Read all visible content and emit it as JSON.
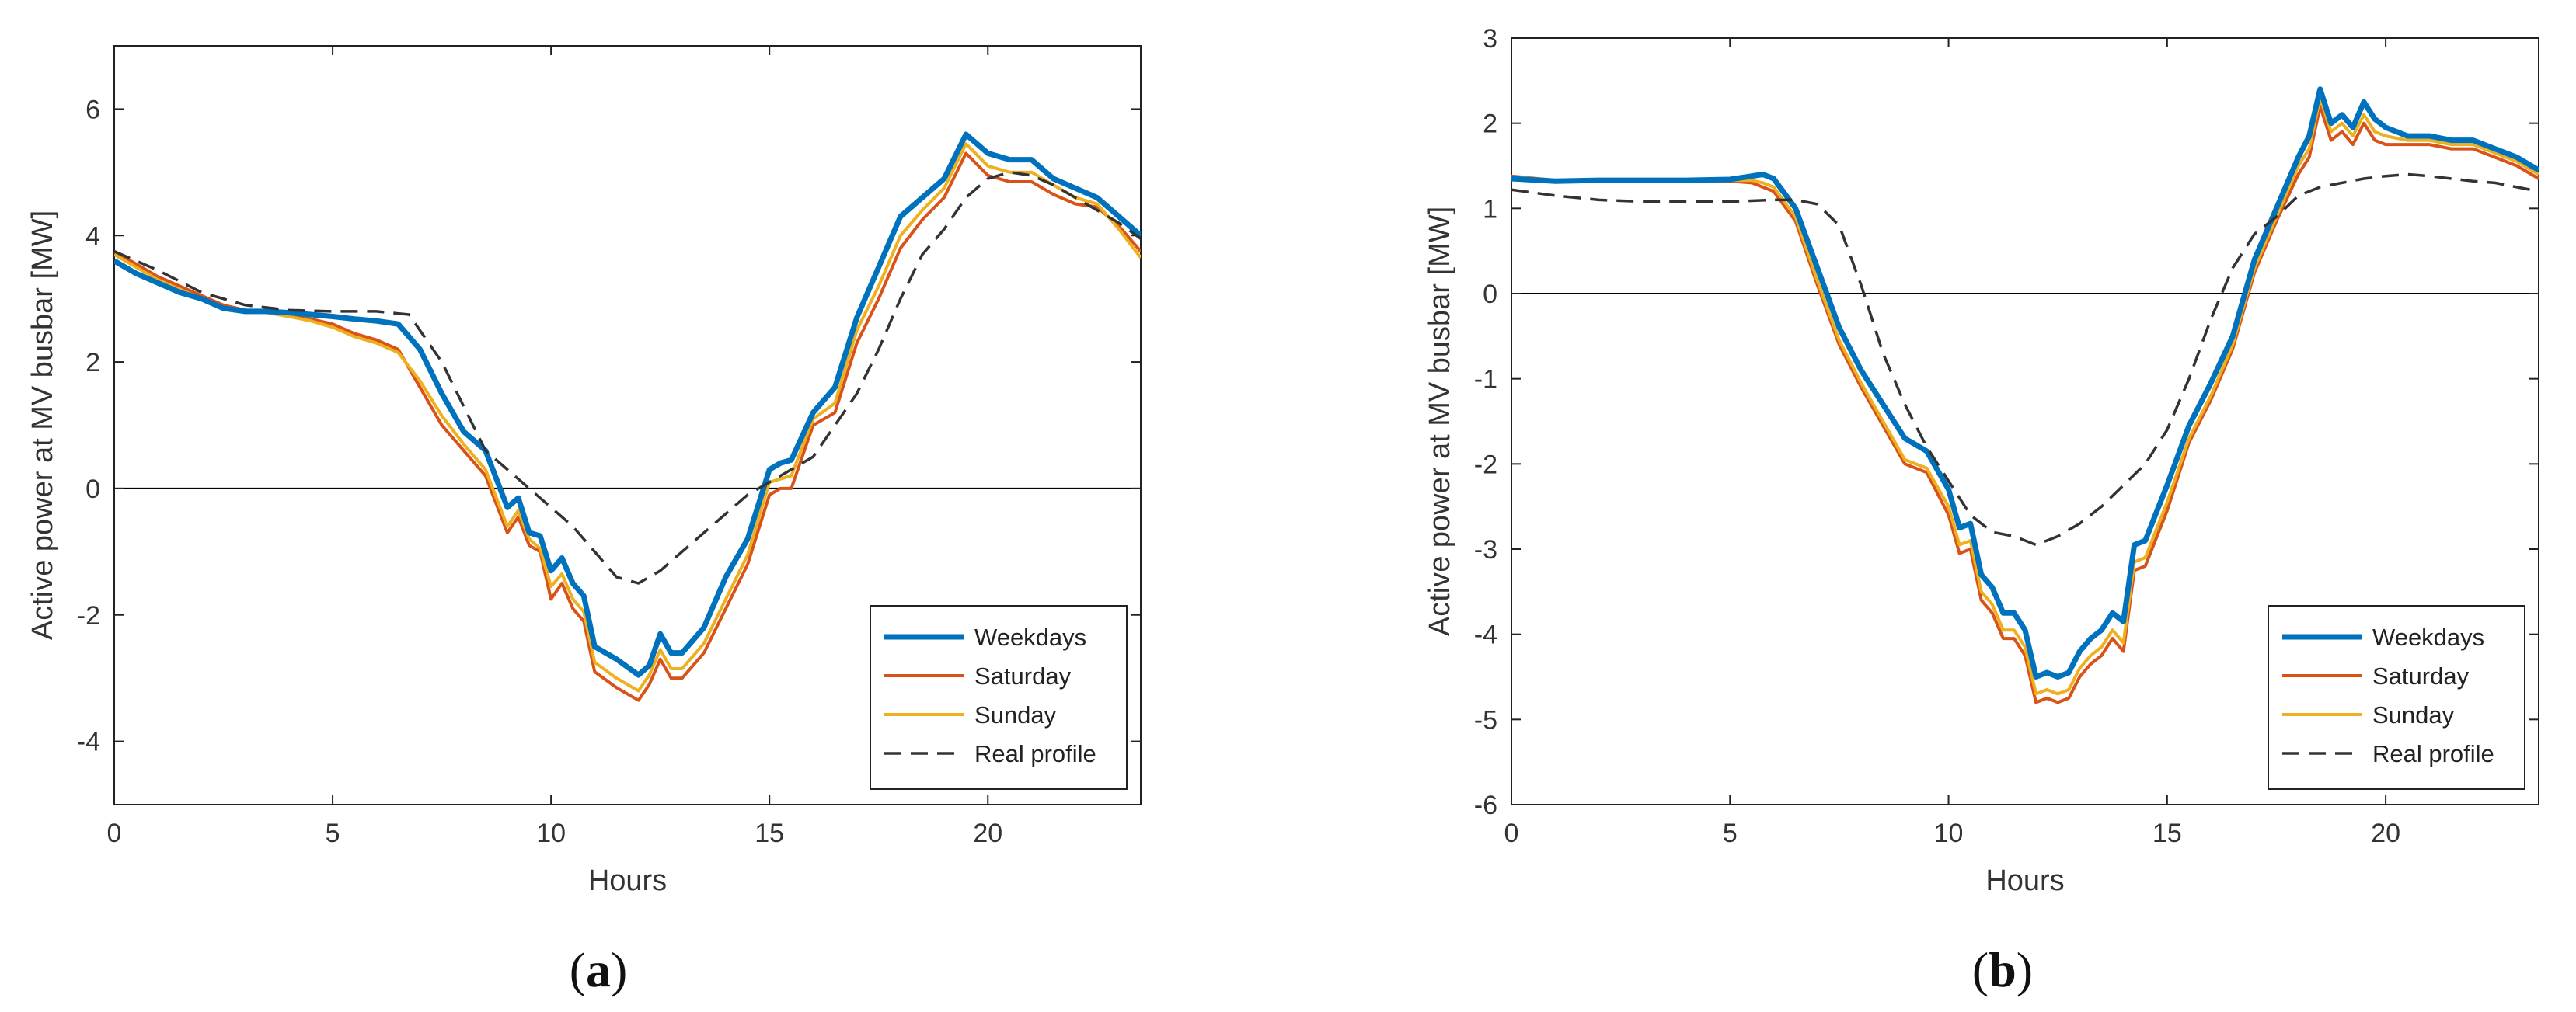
{
  "colors": {
    "weekdays": "#0072BD",
    "saturday": "#D95319",
    "sunday": "#EDB120",
    "real": "#333333",
    "axis": "#000000",
    "tick": "#444444"
  },
  "chart_data": [
    {
      "type": "line",
      "panel_label": "a",
      "xlabel": "Hours",
      "ylabel": "Active power at MV busbar [MW]",
      "xlim": [
        0,
        23.5
      ],
      "ylim": [
        -5,
        7
      ],
      "xticks": [
        0,
        5,
        10,
        15,
        20
      ],
      "yticks": [
        -4,
        -2,
        0,
        2,
        4,
        6
      ],
      "zero_line": true,
      "legend_position": "lower-right",
      "series": [
        {
          "name": "Weekdays",
          "style": "solid-thick",
          "color": "#0072BD",
          "x": [
            0,
            0.5,
            1,
            1.5,
            2,
            2.5,
            3,
            3.5,
            4,
            4.5,
            5,
            5.5,
            6,
            6.5,
            7,
            7.5,
            8,
            8.5,
            9,
            9.25,
            9.5,
            9.75,
            10,
            10.25,
            10.5,
            10.75,
            11,
            11.5,
            12,
            12.25,
            12.5,
            12.75,
            13,
            13.5,
            14,
            14.5,
            15,
            15.25,
            15.5,
            16,
            16.5,
            17,
            17.5,
            18,
            18.5,
            19,
            19.5,
            20,
            20.5,
            21,
            21.5,
            22,
            22.5,
            23,
            23.5
          ],
          "values": [
            3.6,
            3.4,
            3.25,
            3.1,
            3.0,
            2.85,
            2.8,
            2.8,
            2.78,
            2.75,
            2.72,
            2.68,
            2.65,
            2.6,
            2.2,
            1.5,
            0.9,
            0.6,
            -0.3,
            -0.15,
            -0.7,
            -0.75,
            -1.3,
            -1.1,
            -1.5,
            -1.7,
            -2.5,
            -2.7,
            -2.95,
            -2.8,
            -2.3,
            -2.6,
            -2.6,
            -2.2,
            -1.4,
            -0.8,
            0.3,
            0.4,
            0.45,
            1.2,
            1.6,
            2.7,
            3.5,
            4.3,
            4.6,
            4.9,
            5.6,
            5.3,
            5.2,
            5.2,
            4.9,
            4.75,
            4.6,
            4.3,
            4.0
          ]
        },
        {
          "name": "Saturday",
          "style": "solid",
          "color": "#D95319",
          "x": [
            0,
            0.5,
            1,
            1.5,
            2,
            2.5,
            3,
            3.5,
            4,
            4.5,
            5,
            5.5,
            6,
            6.5,
            7,
            7.5,
            8,
            8.5,
            9,
            9.25,
            9.5,
            9.75,
            10,
            10.25,
            10.5,
            10.75,
            11,
            11.5,
            12,
            12.25,
            12.5,
            12.75,
            13,
            13.5,
            14,
            14.5,
            15,
            15.25,
            15.5,
            16,
            16.5,
            17,
            17.5,
            18,
            18.5,
            19,
            19.5,
            20,
            20.5,
            21,
            21.5,
            22,
            22.5,
            23,
            23.5
          ],
          "values": [
            3.75,
            3.55,
            3.35,
            3.2,
            3.05,
            2.9,
            2.82,
            2.8,
            2.75,
            2.68,
            2.6,
            2.45,
            2.35,
            2.2,
            1.6,
            1.0,
            0.6,
            0.2,
            -0.7,
            -0.45,
            -0.9,
            -1.0,
            -1.75,
            -1.5,
            -1.9,
            -2.1,
            -2.9,
            -3.15,
            -3.35,
            -3.1,
            -2.7,
            -3.0,
            -3.0,
            -2.6,
            -1.9,
            -1.2,
            -0.1,
            0.0,
            0.0,
            1.0,
            1.2,
            2.3,
            3.0,
            3.8,
            4.25,
            4.6,
            5.3,
            4.95,
            4.85,
            4.85,
            4.65,
            4.5,
            4.45,
            4.15,
            3.75
          ]
        },
        {
          "name": "Sunday",
          "style": "solid",
          "color": "#EDB120",
          "x": [
            0,
            0.5,
            1,
            1.5,
            2,
            2.5,
            3,
            3.5,
            4,
            4.5,
            5,
            5.5,
            6,
            6.5,
            7,
            7.5,
            8,
            8.5,
            9,
            9.25,
            9.5,
            9.75,
            10,
            10.25,
            10.5,
            10.75,
            11,
            11.5,
            12,
            12.25,
            12.5,
            12.75,
            13,
            13.5,
            14,
            14.5,
            15,
            15.25,
            15.5,
            16,
            16.5,
            17,
            17.5,
            18,
            18.5,
            19,
            19.5,
            20,
            20.5,
            21,
            21.5,
            22,
            22.5,
            23,
            23.5
          ],
          "values": [
            3.7,
            3.5,
            3.3,
            3.15,
            3.0,
            2.85,
            2.8,
            2.78,
            2.72,
            2.65,
            2.55,
            2.4,
            2.3,
            2.15,
            1.7,
            1.15,
            0.7,
            0.3,
            -0.6,
            -0.35,
            -0.8,
            -0.95,
            -1.55,
            -1.35,
            -1.75,
            -1.95,
            -2.75,
            -3.0,
            -3.2,
            -2.95,
            -2.55,
            -2.85,
            -2.85,
            -2.45,
            -1.75,
            -1.05,
            0.1,
            0.15,
            0.2,
            1.1,
            1.35,
            2.5,
            3.2,
            4.0,
            4.4,
            4.75,
            5.45,
            5.1,
            5.0,
            5.0,
            4.8,
            4.6,
            4.5,
            4.1,
            3.65
          ]
        },
        {
          "name": "Real profile",
          "style": "dashed",
          "color": "#333333",
          "x": [
            0,
            1,
            2,
            3,
            4,
            5,
            6,
            6.75,
            7.5,
            8,
            8.5,
            9,
            9.5,
            10,
            10.5,
            11,
            11.5,
            12,
            12.5,
            13,
            13.5,
            14,
            14.5,
            15,
            15.5,
            16,
            16.5,
            17,
            17.5,
            18,
            18.5,
            19,
            19.5,
            20,
            20.5,
            21,
            21.5,
            22,
            22.5,
            23,
            23.5
          ],
          "values": [
            3.75,
            3.45,
            3.1,
            2.9,
            2.82,
            2.8,
            2.8,
            2.75,
            2.0,
            1.3,
            0.6,
            0.3,
            0.0,
            -0.3,
            -0.6,
            -1.0,
            -1.4,
            -1.5,
            -1.3,
            -1.0,
            -0.7,
            -0.4,
            -0.1,
            0.1,
            0.3,
            0.5,
            1.0,
            1.5,
            2.2,
            3.0,
            3.7,
            4.1,
            4.6,
            4.9,
            5.0,
            4.95,
            4.8,
            4.6,
            4.4,
            4.2,
            3.95
          ]
        }
      ]
    },
    {
      "type": "line",
      "panel_label": "b",
      "xlabel": "Hours",
      "ylabel": "Active power at MV busbar [MW]",
      "xlim": [
        0,
        23.5
      ],
      "ylim": [
        -6,
        3
      ],
      "xticks": [
        0,
        5,
        10,
        15,
        20
      ],
      "yticks": [
        -6,
        -5,
        -4,
        -3,
        -2,
        -1,
        0,
        1,
        2,
        3
      ],
      "zero_line": true,
      "legend_position": "lower-right",
      "series": [
        {
          "name": "Weekdays",
          "style": "solid-thick",
          "color": "#0072BD",
          "x": [
            0,
            1,
            2,
            3,
            4,
            5,
            5.5,
            5.75,
            6,
            6.5,
            7,
            7.5,
            8,
            8.5,
            9,
            9.5,
            10,
            10.25,
            10.5,
            10.75,
            11,
            11.25,
            11.5,
            11.75,
            12,
            12.25,
            12.5,
            12.75,
            13,
            13.25,
            13.5,
            13.75,
            14,
            14.25,
            14.5,
            15,
            15.5,
            16,
            16.5,
            17,
            17.5,
            18,
            18.25,
            18.5,
            18.75,
            19,
            19.25,
            19.5,
            19.75,
            20,
            20.5,
            21,
            21.5,
            22,
            22.5,
            23,
            23.5
          ],
          "values": [
            1.35,
            1.32,
            1.33,
            1.33,
            1.33,
            1.34,
            1.38,
            1.4,
            1.35,
            1.0,
            0.3,
            -0.4,
            -0.9,
            -1.3,
            -1.7,
            -1.85,
            -2.3,
            -2.75,
            -2.7,
            -3.3,
            -3.45,
            -3.75,
            -3.75,
            -3.95,
            -4.5,
            -4.45,
            -4.5,
            -4.45,
            -4.2,
            -4.05,
            -3.95,
            -3.75,
            -3.85,
            -2.95,
            -2.9,
            -2.25,
            -1.55,
            -1.05,
            -0.5,
            0.4,
            1.0,
            1.6,
            1.85,
            2.4,
            2.0,
            2.1,
            1.95,
            2.25,
            2.05,
            1.95,
            1.85,
            1.85,
            1.8,
            1.8,
            1.7,
            1.6,
            1.45
          ]
        },
        {
          "name": "Saturday",
          "style": "solid",
          "color": "#D95319",
          "x": [
            0,
            1,
            2,
            3,
            4,
            5,
            5.5,
            5.75,
            6,
            6.5,
            7,
            7.5,
            8,
            8.5,
            9,
            9.5,
            10,
            10.25,
            10.5,
            10.75,
            11,
            11.25,
            11.5,
            11.75,
            12,
            12.25,
            12.5,
            12.75,
            13,
            13.25,
            13.5,
            13.75,
            14,
            14.25,
            14.5,
            15,
            15.5,
            16,
            16.5,
            17,
            17.5,
            18,
            18.25,
            18.5,
            18.75,
            19,
            19.25,
            19.5,
            19.75,
            20,
            20.5,
            21,
            21.5,
            22,
            22.5,
            23,
            23.5
          ],
          "values": [
            1.38,
            1.33,
            1.33,
            1.33,
            1.33,
            1.32,
            1.3,
            1.25,
            1.2,
            0.85,
            0.1,
            -0.6,
            -1.1,
            -1.55,
            -2.0,
            -2.1,
            -2.6,
            -3.05,
            -3.0,
            -3.6,
            -3.75,
            -4.05,
            -4.05,
            -4.25,
            -4.8,
            -4.75,
            -4.8,
            -4.75,
            -4.5,
            -4.35,
            -4.25,
            -4.05,
            -4.2,
            -3.25,
            -3.2,
            -2.55,
            -1.75,
            -1.25,
            -0.65,
            0.25,
            0.85,
            1.4,
            1.6,
            2.2,
            1.8,
            1.9,
            1.75,
            2.0,
            1.8,
            1.75,
            1.75,
            1.75,
            1.7,
            1.7,
            1.6,
            1.5,
            1.35
          ]
        },
        {
          "name": "Sunday",
          "style": "solid",
          "color": "#EDB120",
          "x": [
            0,
            1,
            2,
            3,
            4,
            5,
            5.5,
            5.75,
            6,
            6.5,
            7,
            7.5,
            8,
            8.5,
            9,
            9.5,
            10,
            10.25,
            10.5,
            10.75,
            11,
            11.25,
            11.5,
            11.75,
            12,
            12.25,
            12.5,
            12.75,
            13,
            13.25,
            13.5,
            13.75,
            14,
            14.25,
            14.5,
            15,
            15.5,
            16,
            16.5,
            17,
            17.5,
            18,
            18.25,
            18.5,
            18.75,
            19,
            19.25,
            19.5,
            19.75,
            20,
            20.5,
            21,
            21.5,
            22,
            22.5,
            23,
            23.5
          ],
          "values": [
            1.37,
            1.33,
            1.33,
            1.33,
            1.33,
            1.33,
            1.33,
            1.3,
            1.25,
            0.9,
            0.15,
            -0.55,
            -1.05,
            -1.5,
            -1.95,
            -2.05,
            -2.5,
            -2.95,
            -2.9,
            -3.5,
            -3.65,
            -3.95,
            -3.95,
            -4.15,
            -4.7,
            -4.65,
            -4.7,
            -4.65,
            -4.4,
            -4.25,
            -4.15,
            -3.95,
            -4.1,
            -3.15,
            -3.1,
            -2.45,
            -1.7,
            -1.2,
            -0.6,
            0.3,
            0.9,
            1.5,
            1.7,
            2.3,
            1.9,
            2.0,
            1.85,
            2.1,
            1.9,
            1.85,
            1.8,
            1.8,
            1.75,
            1.75,
            1.65,
            1.55,
            1.4
          ]
        },
        {
          "name": "Real profile",
          "style": "dashed",
          "color": "#333333",
          "x": [
            0,
            1,
            2,
            3,
            4,
            5,
            6,
            6.5,
            7,
            7.5,
            8,
            8.5,
            9,
            9.5,
            10,
            10.5,
            11,
            11.5,
            12,
            12.5,
            13,
            13.5,
            14,
            14.5,
            15,
            15.5,
            16,
            16.5,
            17,
            17.5,
            18,
            18.5,
            19,
            19.5,
            20,
            20.5,
            21,
            21.5,
            22,
            22.5,
            23,
            23.5
          ],
          "values": [
            1.22,
            1.15,
            1.1,
            1.08,
            1.08,
            1.08,
            1.1,
            1.1,
            1.05,
            0.8,
            0.1,
            -0.7,
            -1.3,
            -1.8,
            -2.2,
            -2.6,
            -2.8,
            -2.85,
            -2.95,
            -2.85,
            -2.7,
            -2.5,
            -2.25,
            -2.0,
            -1.6,
            -1.0,
            -0.3,
            0.3,
            0.7,
            0.9,
            1.15,
            1.25,
            1.3,
            1.35,
            1.38,
            1.4,
            1.38,
            1.35,
            1.32,
            1.3,
            1.25,
            1.2
          ]
        }
      ]
    }
  ]
}
